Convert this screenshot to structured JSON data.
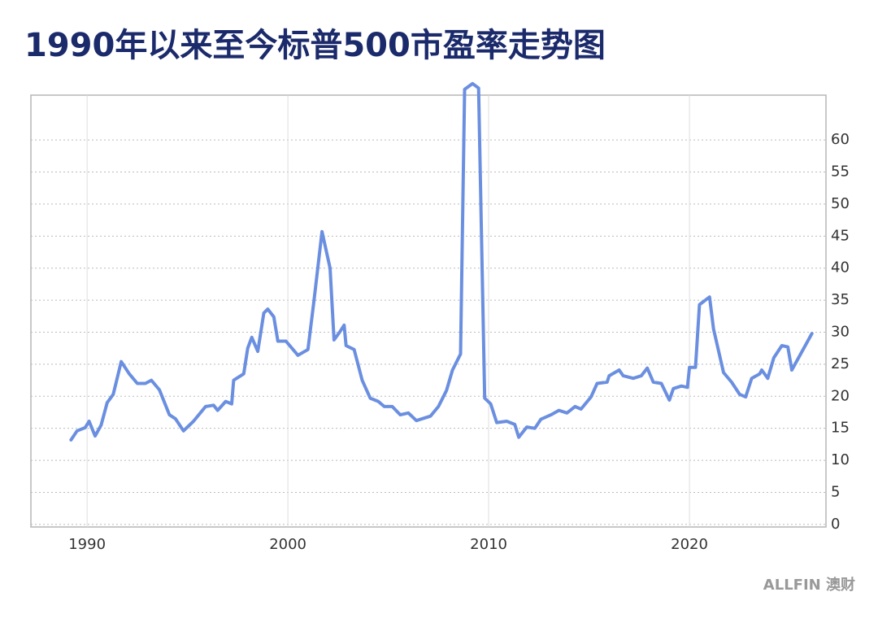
{
  "chart_data": {
    "type": "line",
    "title": "1990年以来至今标普500市盈率走势图",
    "brand": "ALLFIN 澳财",
    "color": "#6b8fe0",
    "x": [
      1989.2,
      1989.5,
      1989.9,
      1990.1,
      1990.4,
      1990.7,
      1991.0,
      1991.3,
      1991.7,
      1992.1,
      1992.5,
      1992.9,
      1993.2,
      1993.6,
      1994.1,
      1994.4,
      1994.8,
      1995.3,
      1995.9,
      1996.3,
      1996.5,
      1996.9,
      1997.2,
      1997.3,
      1997.8,
      1998.0,
      1998.2,
      1998.5,
      1998.8,
      1999.0,
      1999.3,
      1999.5,
      1999.9,
      2000.2,
      2000.5,
      2001.0,
      2001.3,
      2001.7,
      2002.1,
      2002.3,
      2002.6,
      2002.8,
      2002.9,
      2003.3,
      2003.7,
      2004.1,
      2004.5,
      2004.8,
      2005.2,
      2005.6,
      2006.0,
      2006.4,
      2007.1,
      2007.5,
      2007.9,
      2008.2,
      2008.6,
      2008.8,
      2009.2,
      2009.5,
      2009.8,
      2010.1,
      2010.4,
      2010.9,
      2011.3,
      2011.5,
      2011.9,
      2012.3,
      2012.6,
      2013.1,
      2013.5,
      2013.9,
      2014.3,
      2014.6,
      2015.1,
      2015.4,
      2015.9,
      2016.0,
      2016.5,
      2016.7,
      2017.2,
      2017.6,
      2017.9,
      2018.2,
      2018.6,
      2019.0,
      2019.2,
      2019.6,
      2019.9,
      2020.0,
      2020.3,
      2020.5,
      2021.0,
      2021.2,
      2021.7,
      2022.1,
      2022.5,
      2022.8,
      2023.1,
      2023.5,
      2023.6,
      2023.9,
      2024.2,
      2024.6,
      2024.9,
      2025.1,
      2026.1
    ],
    "values": [
      13.2,
      14.6,
      15.1,
      16.1,
      13.8,
      15.5,
      19.0,
      20.3,
      25.4,
      23.5,
      22.0,
      22.0,
      22.5,
      21.0,
      17.1,
      16.5,
      14.6,
      16.1,
      18.4,
      18.6,
      17.8,
      19.2,
      18.8,
      22.5,
      23.5,
      27.5,
      29.2,
      27.0,
      33.0,
      33.6,
      32.4,
      28.6,
      28.6,
      27.5,
      26.4,
      27.3,
      34.9,
      45.7,
      40.0,
      28.8,
      30.1,
      31.1,
      27.9,
      27.3,
      22.5,
      19.7,
      19.2,
      18.4,
      18.4,
      17.1,
      17.4,
      16.2,
      16.9,
      18.4,
      20.9,
      24.1,
      26.6,
      67.9,
      68.8,
      68.1,
      19.7,
      18.8,
      15.9,
      16.1,
      15.6,
      13.6,
      15.2,
      15.0,
      16.4,
      17.1,
      17.8,
      17.4,
      18.4,
      18.0,
      19.9,
      22.0,
      22.2,
      23.2,
      24.1,
      23.2,
      22.8,
      23.2,
      24.4,
      22.2,
      22.0,
      19.4,
      21.2,
      21.6,
      21.4,
      24.5,
      24.5,
      34.3,
      35.5,
      30.5,
      23.7,
      22.2,
      20.3,
      19.9,
      22.8,
      23.5,
      24.1,
      22.8,
      26.0,
      27.9,
      27.7,
      24.1,
      29.8
    ],
    "xlim": [
      1987.2,
      2026.8
    ],
    "xticks": [
      1990,
      2000,
      2010,
      2020
    ],
    "ylim": [
      -0.4,
      67
    ],
    "yticks": [
      0,
      5,
      10,
      15,
      20,
      25,
      30,
      35,
      40,
      45,
      50,
      55,
      60
    ],
    "grid": true
  }
}
